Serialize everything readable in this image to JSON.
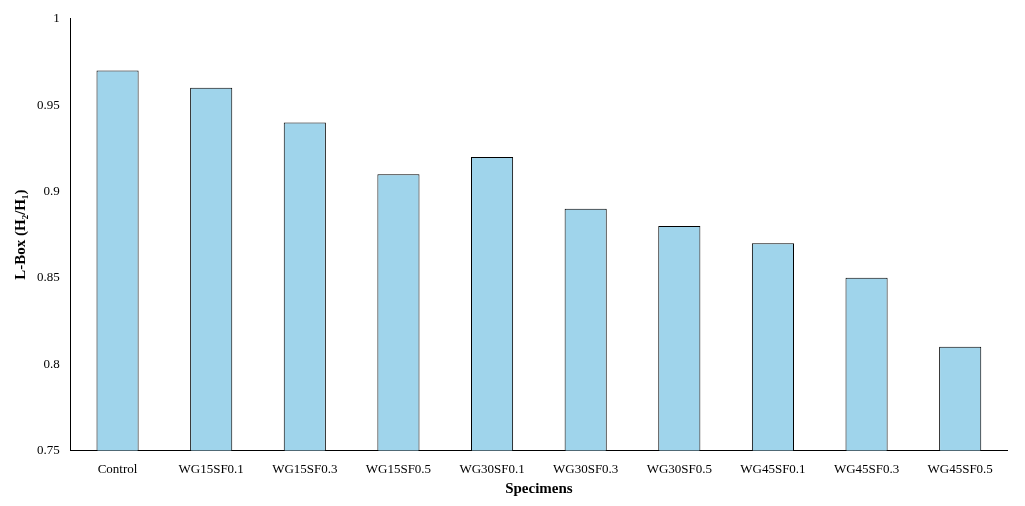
{
  "chart_data": {
    "type": "bar",
    "xlabel": "Specimens",
    "ylabel": "L-Box (H₂/H₁)",
    "categories": [
      "Control",
      "WG15SF0.1",
      "WG15SF0.3",
      "WG15SF0.5",
      "WG30SF0.1",
      "WG30SF0.3",
      "WG30SF0.5",
      "WG45SF0.1",
      "WG45SF0.3",
      "WG45SF0.5"
    ],
    "values": [
      0.97,
      0.96,
      0.94,
      0.91,
      0.92,
      0.89,
      0.88,
      0.87,
      0.85,
      0.81
    ],
    "color": "#9fd4eb",
    "ylim": [
      0.75,
      1
    ],
    "yticks": [
      0.75,
      0.8,
      0.85,
      0.9,
      0.95,
      1
    ],
    "grid": false,
    "legend": false
  }
}
